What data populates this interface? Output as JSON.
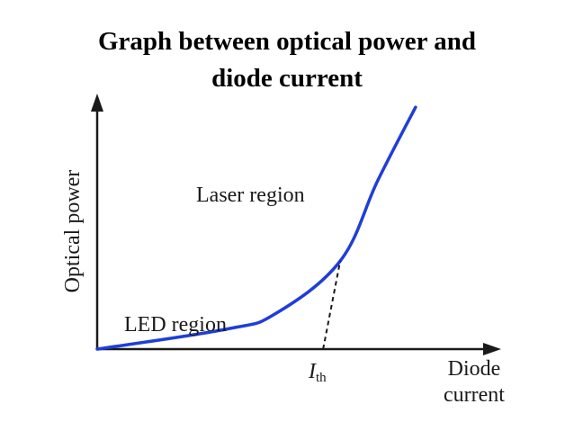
{
  "title_lines": [
    "Graph between optical power and",
    "diode current"
  ],
  "chart_data": {
    "type": "line",
    "title": "Graph between optical power and diode current",
    "ylabel": "Optical power",
    "xlabel_lines": [
      "Diode",
      "current"
    ],
    "threshold_label": {
      "main": "I",
      "sub": "th"
    },
    "region_labels": [
      "LED region",
      "Laser region"
    ],
    "series": [
      {
        "color": "#1f3ed6",
        "x": [
          0,
          3.8,
          5.2,
          7.1,
          8.2,
          9.3
        ],
        "y": [
          0,
          0.8,
          1.4,
          3.5,
          6.7,
          9.6
        ]
      }
    ],
    "threshold_tangent": {
      "x": [
        6.6,
        7.1
      ],
      "y": [
        0,
        3.5
      ]
    },
    "xlim": [
      0,
      11.8
    ],
    "ylim": [
      0,
      10
    ],
    "grid": false,
    "legend": "none",
    "ticks": "none"
  }
}
